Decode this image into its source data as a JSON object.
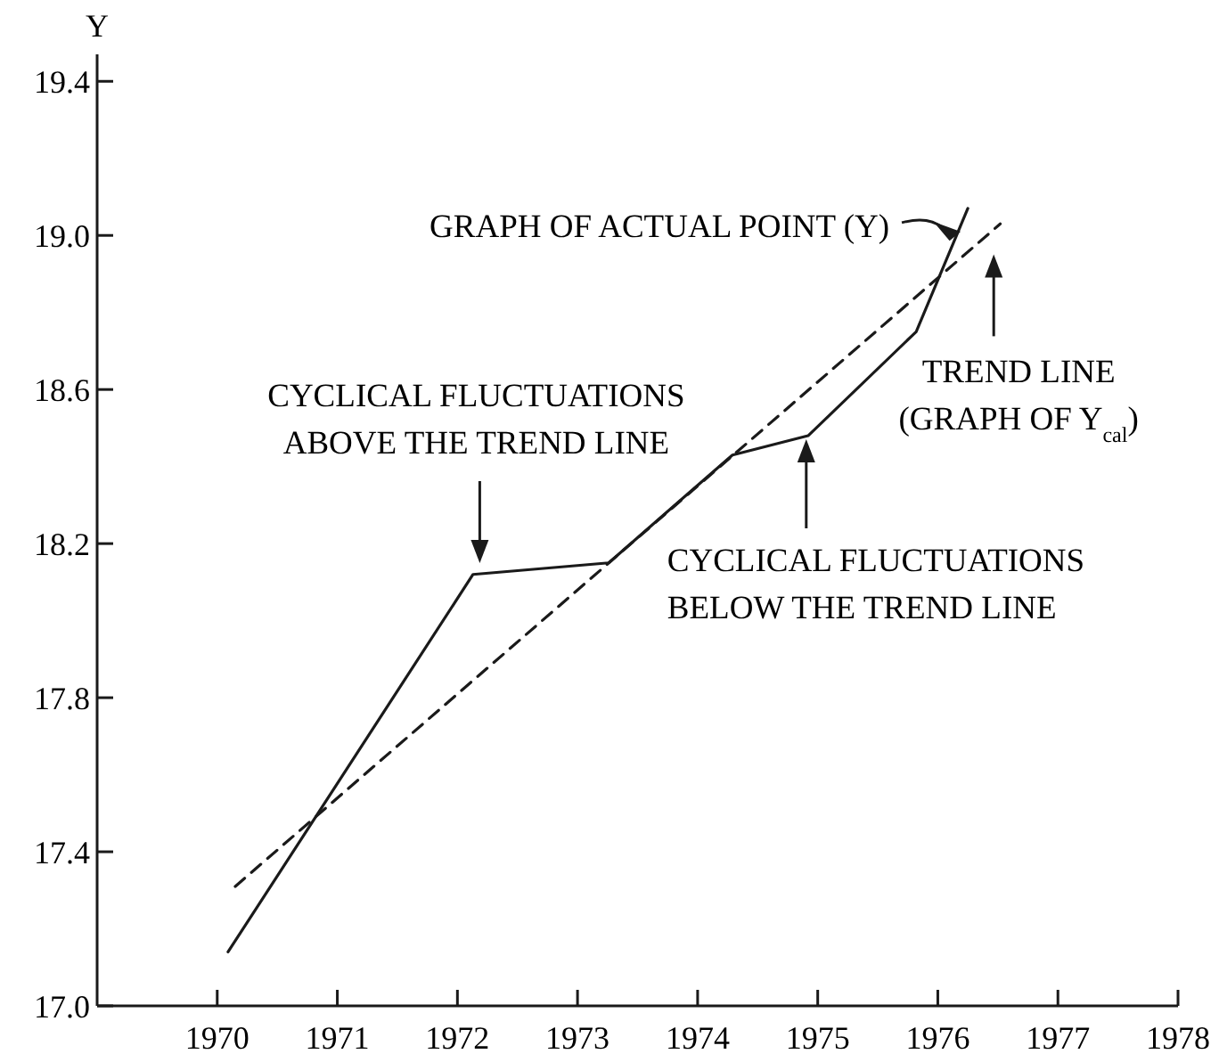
{
  "chart_data": {
    "type": "line",
    "ylabel": "Y",
    "xlim": [
      1969,
      1978
    ],
    "xticks": [
      1970,
      1971,
      1972,
      1973,
      1974,
      1975,
      1976,
      1977,
      1978
    ],
    "ylim": [
      17.0,
      19.47
    ],
    "yticks": [
      {
        "value": 17.0,
        "label": "17.0"
      },
      {
        "value": 17.4,
        "label": "17.4"
      },
      {
        "value": 17.8,
        "label": "17.8"
      },
      {
        "value": 18.2,
        "label": "18.2"
      },
      {
        "value": 18.6,
        "label": "18.6"
      },
      {
        "value": 19.0,
        "label": "19.0"
      },
      {
        "value": 19.4,
        "label": "19.4"
      }
    ],
    "grid": false,
    "marker": "none",
    "series": [
      {
        "color": "#1a1a1a",
        "line_style": "solid",
        "x": [
          1970.09,
          1972.13,
          1973.26,
          1974.29,
          1974.92,
          1975.82,
          1976.25
        ],
        "values": [
          17.14,
          18.12,
          18.15,
          18.43,
          18.48,
          18.75,
          19.07
        ]
      },
      {
        "type": "line",
        "color": "#1a1a1a",
        "line_style": "dashed",
        "x": [
          1970.15,
          1976.52
        ],
        "values": [
          17.31,
          19.03
        ]
      }
    ],
    "annotations": [
      {
        "text": "GRAPH OF ACTUAL POINT (Y)",
        "x": 1976.19,
        "y": 19.01
      },
      "CYCLICAL FLUCTUATIONS\nABOVE THE TREND LINE",
      "CYCLICAL FLUCTUATIONS\nBELOW THE TREND LINE",
      "TREND LINE\n(GRAPH OF Y$_{cal}$)"
    ]
  }
}
